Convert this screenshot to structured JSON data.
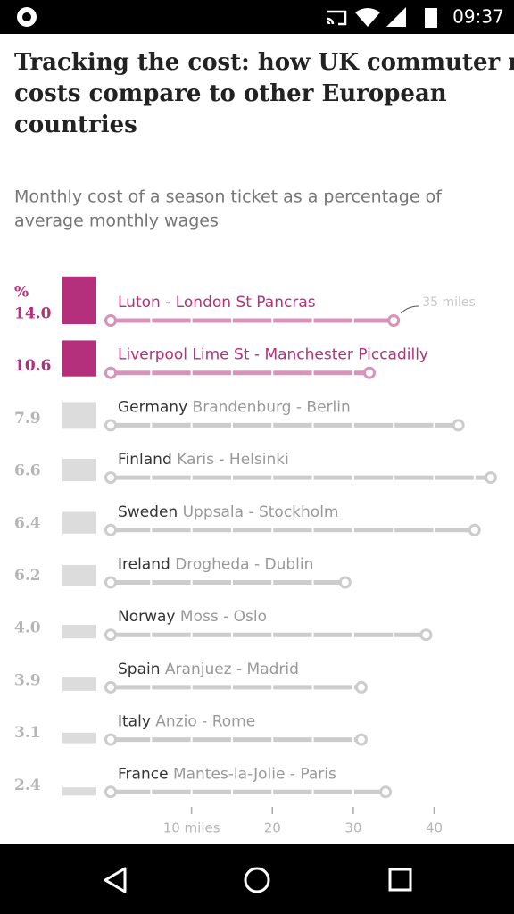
{
  "status_bar": {
    "time": "09:37"
  },
  "chart_data": {
    "type": "commute",
    "title": [
      "Tracking the cost: how UK commuter rail",
      "costs compare to other European",
      "countries"
    ],
    "subtitle": [
      "Monthly cost of a season ticket as a percentage of",
      "average monthly wages"
    ],
    "value_unit_label": "%",
    "countries": [
      null,
      null,
      "Germany",
      "Finland",
      "Sweden",
      "Ireland",
      "Norway",
      "Spain",
      "Italy",
      "France"
    ],
    "routes": [
      "Luton - London St Pancras",
      "Liverpool Lime St - Manchester Piccadilly",
      "Brandenburg - Berlin",
      "Karis - Helsinki",
      "Uppsala - Stockholm",
      "Drogheda - Dublin",
      "Moss - Oslo",
      "Aranjuez - Madrid",
      "Anzio - Rome",
      "Mantes-la-Jolie - Paris"
    ],
    "values": [
      14.0,
      10.6,
      7.9,
      6.6,
      6.4,
      6.2,
      4.0,
      3.9,
      3.1,
      2.4
    ],
    "value_labels": [
      "14.0",
      "10.6",
      "7.9",
      "6.6",
      "6.4",
      "6.2",
      "4.0",
      "3.9",
      "3.1",
      "2.4"
    ],
    "miles": [
      35,
      32,
      43,
      47,
      45,
      29,
      39,
      31,
      31,
      34
    ],
    "highlight": [
      true,
      true,
      false,
      false,
      false,
      false,
      false,
      false,
      false,
      false
    ],
    "highlight_color": "#b5307c",
    "color": "#dcdcdc",
    "annotation": "35 miles",
    "xlim": [
      0,
      48
    ],
    "xticks": [
      {
        "value": 10,
        "label": "10 miles"
      },
      20,
      30,
      40
    ]
  }
}
